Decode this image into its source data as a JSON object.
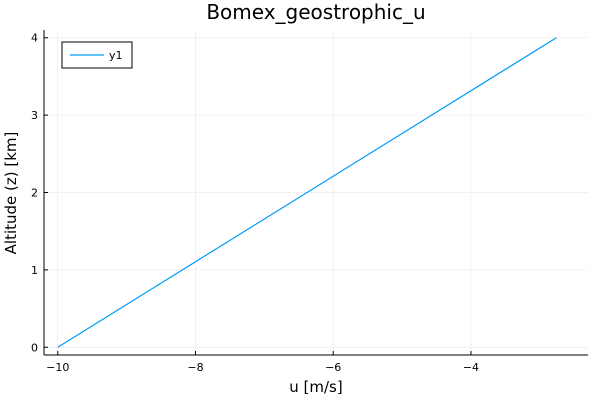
{
  "chart_data": {
    "type": "line",
    "title": "Bomex_geostrophic_u",
    "xlabel": "u [m/s]",
    "ylabel": "Altitude (z) [km]",
    "xlim": [
      -10.2,
      -2.3
    ],
    "ylim": [
      -0.1,
      4.1
    ],
    "xticks": [
      -10,
      -8,
      -6,
      -4
    ],
    "yticks": [
      0,
      1,
      2,
      3,
      4
    ],
    "xtick_labels": [
      "−10",
      "−8",
      "−6",
      "−4"
    ],
    "ytick_labels": [
      "0",
      "1",
      "2",
      "3",
      "4"
    ],
    "grid": true,
    "legend_position": "top-left",
    "series": [
      {
        "name": "y1",
        "color": "#009AFA",
        "x": [
          -10.0,
          -2.76
        ],
        "y": [
          0.0,
          4.0
        ]
      }
    ]
  }
}
